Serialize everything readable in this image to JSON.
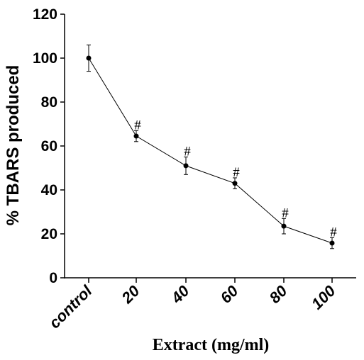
{
  "chart_data": {
    "type": "line",
    "categories": [
      "control",
      "20",
      "40",
      "60",
      "80",
      "100"
    ],
    "series": [
      {
        "values": [
          100,
          64.5,
          51,
          43,
          23.5,
          15.8
        ],
        "errors": [
          6,
          2.5,
          4,
          2.5,
          3.5,
          2.5
        ],
        "annotations": [
          "",
          "#",
          "#",
          "#",
          "#",
          "#"
        ]
      }
    ],
    "xlabel": "Extract (mg/ml)",
    "ylabel": "% TBARS produced",
    "ylim": [
      0,
      120
    ],
    "yticks": [
      "0",
      "20",
      "40",
      "60",
      "80",
      "100",
      "120"
    ],
    "grid": false,
    "colors": {
      "line": "#000000",
      "marker": "#000000"
    }
  }
}
